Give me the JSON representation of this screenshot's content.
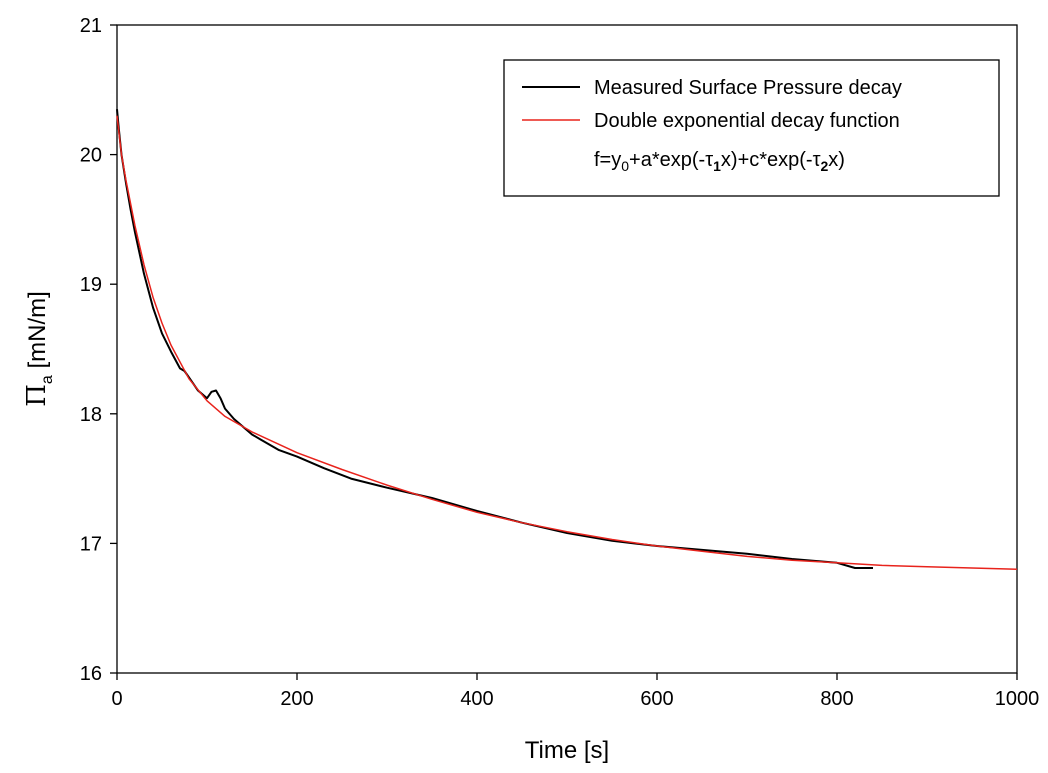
{
  "chart_data": {
    "type": "line",
    "xlabel": "Time [s]",
    "ylabel": {
      "symbol": "Π",
      "subscript": "a",
      "unit": " [mN/m]"
    },
    "xlim": [
      0,
      1000
    ],
    "ylim": [
      16,
      21
    ],
    "x_ticks": [
      0,
      200,
      400,
      600,
      800,
      1000
    ],
    "x_tick_labels": [
      "0",
      "200",
      "400",
      "600",
      "800",
      "1000"
    ],
    "y_ticks": [
      16,
      17,
      18,
      19,
      20,
      21
    ],
    "y_tick_labels": [
      "16",
      "17",
      "18",
      "19",
      "20",
      "21"
    ],
    "grid": false,
    "legend_position": "top-right",
    "formula": "f=y0+a*exp(-τ1x)+c*exp(-τ2x)",
    "formula_parts": {
      "p1": "f=y",
      "s1": "0",
      "p2": "+a*exp(-τ",
      "s2": "1",
      "p3": "x)+c*exp(-τ",
      "s3": "2",
      "p4": "x)"
    },
    "series": [
      {
        "name": "Measured Surface Pressure decay",
        "color": "#000000",
        "x": [
          0,
          2,
          5,
          10,
          15,
          20,
          30,
          40,
          50,
          60,
          70,
          75,
          80,
          90,
          100,
          105,
          110,
          115,
          120,
          130,
          140,
          150,
          160,
          180,
          200,
          230,
          260,
          300,
          350,
          400,
          450,
          500,
          550,
          600,
          650,
          700,
          750,
          800,
          820,
          840
        ],
        "y": [
          20.35,
          20.2,
          20.0,
          19.78,
          19.58,
          19.4,
          19.08,
          18.82,
          18.62,
          18.48,
          18.35,
          18.33,
          18.28,
          18.18,
          18.12,
          18.17,
          18.18,
          18.12,
          18.04,
          17.96,
          17.9,
          17.84,
          17.8,
          17.72,
          17.67,
          17.58,
          17.5,
          17.43,
          17.35,
          17.25,
          17.16,
          17.08,
          17.02,
          16.98,
          16.95,
          16.92,
          16.88,
          16.85,
          16.81,
          16.81
        ]
      },
      {
        "name": "Double exponential decay function",
        "color": "#e8231c",
        "x": [
          0,
          5,
          10,
          20,
          30,
          40,
          50,
          60,
          80,
          100,
          120,
          150,
          200,
          250,
          300,
          350,
          400,
          450,
          500,
          550,
          600,
          650,
          700,
          750,
          800,
          850,
          900,
          950,
          1000
        ],
        "y": [
          20.3,
          20.0,
          19.8,
          19.45,
          19.15,
          18.9,
          18.7,
          18.53,
          18.27,
          18.1,
          17.98,
          17.86,
          17.7,
          17.57,
          17.45,
          17.34,
          17.24,
          17.16,
          17.09,
          17.03,
          16.98,
          16.94,
          16.9,
          16.87,
          16.85,
          16.83,
          16.82,
          16.81,
          16.8
        ]
      }
    ]
  }
}
